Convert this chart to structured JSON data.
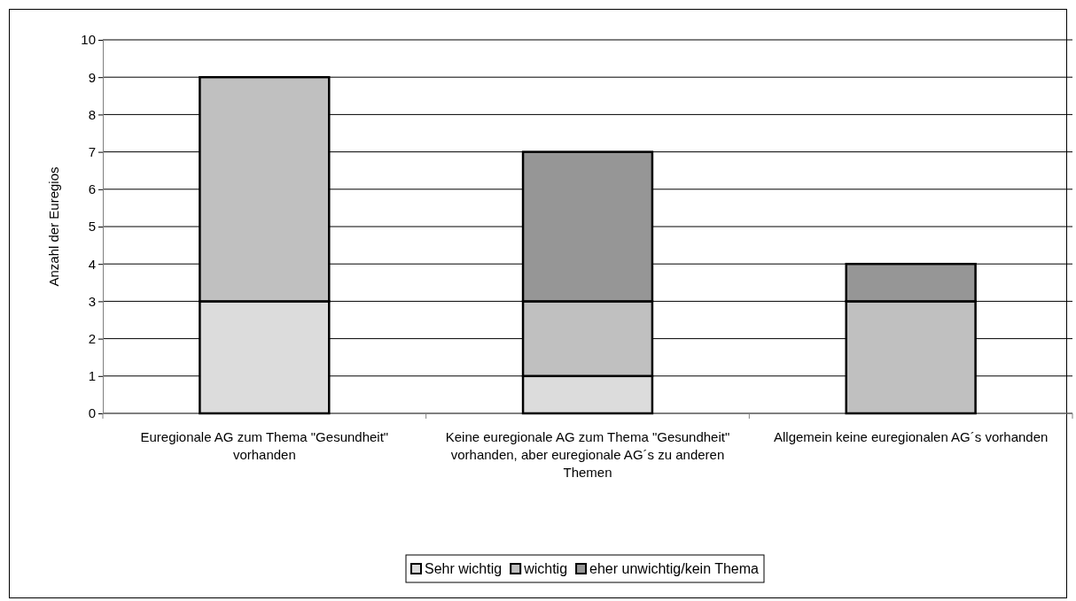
{
  "chart_data": {
    "type": "bar",
    "stacked": true,
    "ylabel": "Anzahl der Euregios",
    "categories": [
      "Euregionale AG zum Thema \"Gesundheit\" vorhanden",
      "Keine euregionale AG zum Thema \"Gesundheit\" vorhanden, aber euregionale AG´s zu anderen Themen",
      "Allgemein keine euregionalen AG´s vorhanden"
    ],
    "series": [
      {
        "name": "Sehr wichtig",
        "color": "#dcdcdc",
        "values": [
          3,
          1,
          0
        ]
      },
      {
        "name": "wichtig",
        "color": "#c0c0c0",
        "values": [
          6,
          2,
          3
        ]
      },
      {
        "name": "eher unwichtig/kein Thema",
        "color": "#969696",
        "values": [
          0,
          4,
          1
        ]
      }
    ],
    "ylim": [
      0,
      10
    ],
    "yticks": [
      0,
      1,
      2,
      3,
      4,
      5,
      6,
      7,
      8,
      9,
      10
    ],
    "grid": "y",
    "legend": "bottom"
  }
}
